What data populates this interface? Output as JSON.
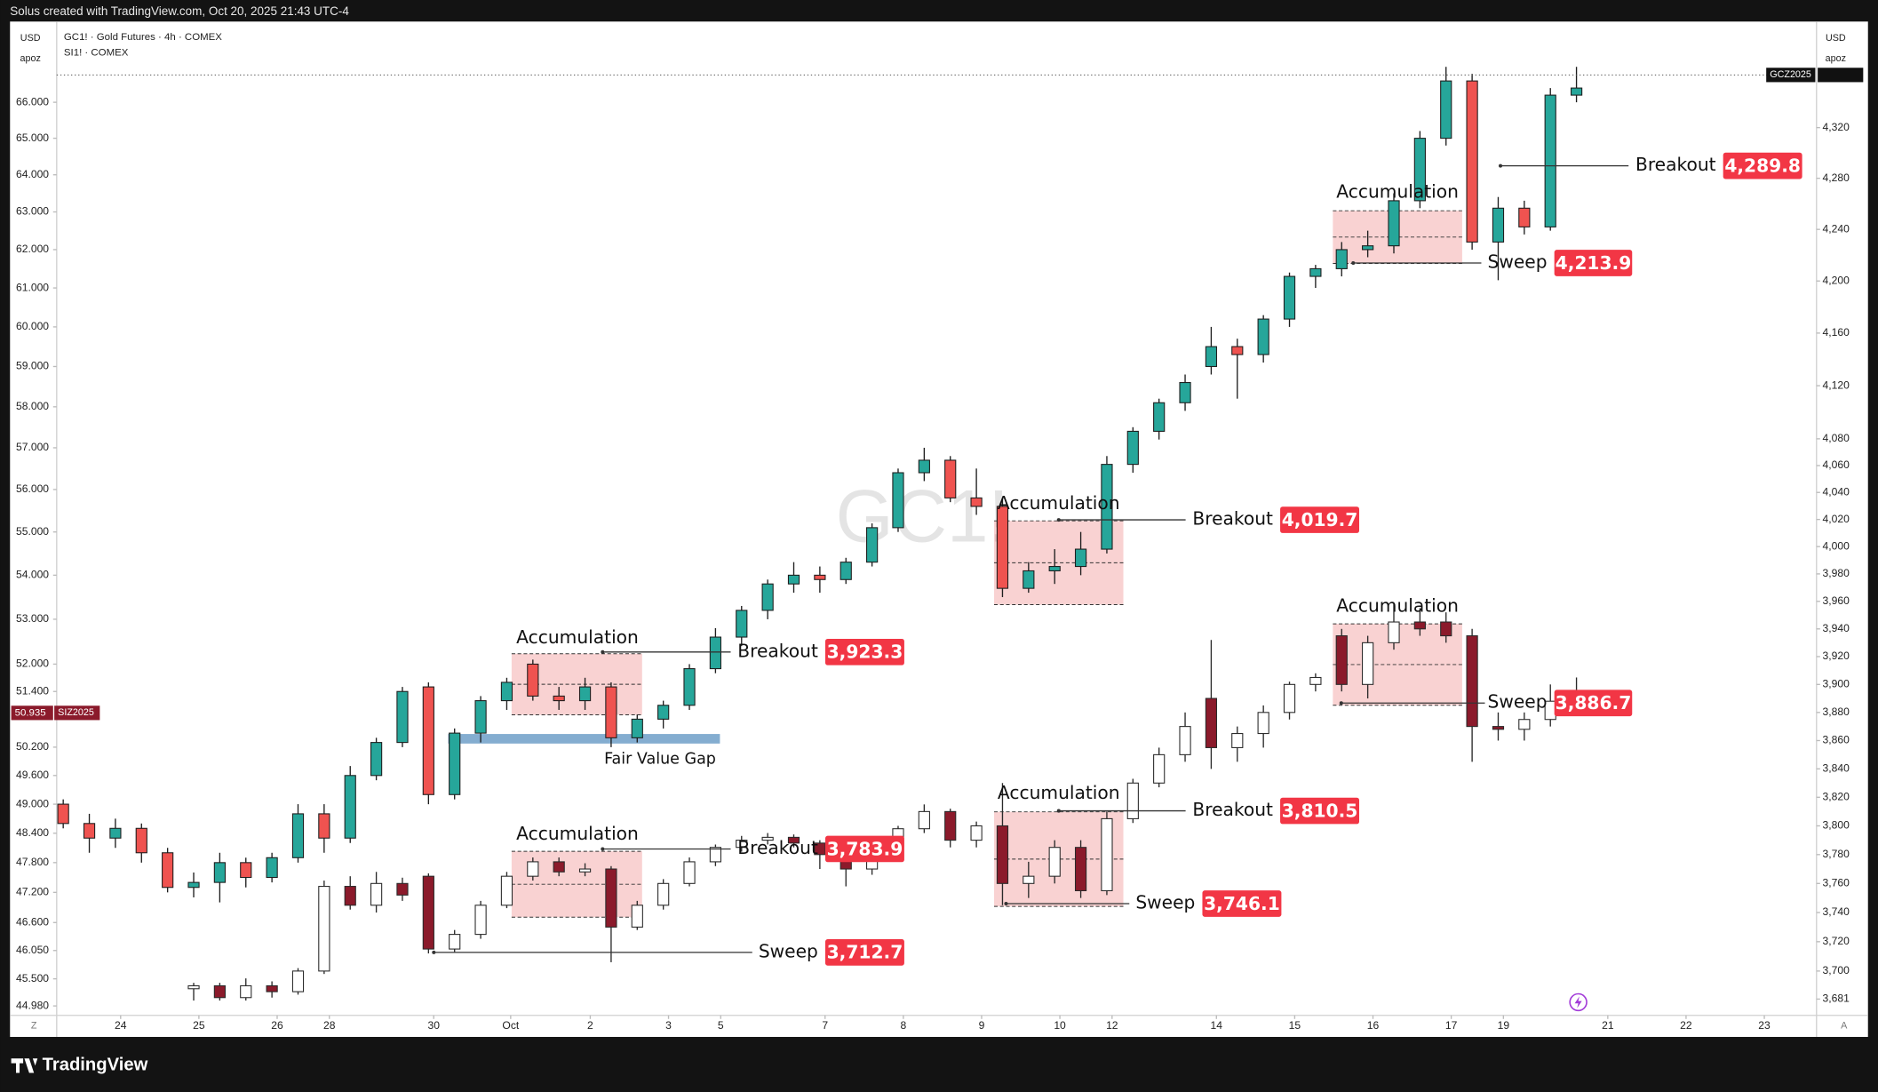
{
  "chart_data": {
    "type": "candlestick",
    "title": "Solus created with TradingView.com, Oct 20, 2025 21:43 UTC-4",
    "watermark": "GC1!",
    "footer": "TradingView",
    "axis_labels": {
      "left": [
        "USD",
        "apoz"
      ],
      "right": [
        "USD",
        "apoz"
      ]
    },
    "corner_labels": [
      "Z",
      "A"
    ],
    "log_scale": true,
    "grid": false,
    "xlim": [
      -0.5,
      134.4
    ],
    "xticks": [
      {
        "value": 4.4,
        "label": "24"
      },
      {
        "value": 10.4,
        "label": "25"
      },
      {
        "value": 16.4,
        "label": "26"
      },
      {
        "value": 20.4,
        "label": "28"
      },
      {
        "value": 28.4,
        "label": "30"
      },
      {
        "value": 34.3,
        "label": "Oct"
      },
      {
        "value": 40.4,
        "label": "2"
      },
      {
        "value": 46.4,
        "label": "3"
      },
      {
        "value": 50.4,
        "label": "5"
      },
      {
        "value": 58.4,
        "label": "7"
      },
      {
        "value": 64.4,
        "label": "8"
      },
      {
        "value": 70.4,
        "label": "9"
      },
      {
        "value": 76.4,
        "label": "10"
      },
      {
        "value": 80.4,
        "label": "12"
      },
      {
        "value": 88.4,
        "label": "14"
      },
      {
        "value": 94.4,
        "label": "15"
      },
      {
        "value": 100.4,
        "label": "16"
      },
      {
        "value": 106.4,
        "label": "17"
      },
      {
        "value": 110.4,
        "label": "19"
      },
      {
        "value": 118.4,
        "label": "21"
      },
      {
        "value": 124.4,
        "label": "22"
      },
      {
        "value": 130.4,
        "label": "23"
      }
    ],
    "ylim": [
      44.8,
      68.3
    ],
    "yticks": [
      {
        "value": 66,
        "label": "66.000"
      },
      {
        "value": 65,
        "label": "65.000"
      },
      {
        "value": 64,
        "label": "64.000"
      },
      {
        "value": 63,
        "label": "63.000"
      },
      {
        "value": 62,
        "label": "62.000"
      },
      {
        "value": 61,
        "label": "61.000"
      },
      {
        "value": 60,
        "label": "60.000"
      },
      {
        "value": 59,
        "label": "59.000"
      },
      {
        "value": 58,
        "label": "58.000"
      },
      {
        "value": 57,
        "label": "57.000"
      },
      {
        "value": 56,
        "label": "56.000"
      },
      {
        "value": 55,
        "label": "55.000"
      },
      {
        "value": 54,
        "label": "54.000"
      },
      {
        "value": 53,
        "label": "53.000"
      },
      {
        "value": 52,
        "label": "52.000"
      },
      {
        "value": 51.4,
        "label": "51.400"
      },
      {
        "value": 50.2,
        "label": "50.200"
      },
      {
        "value": 49.6,
        "label": "49.600"
      },
      {
        "value": 49,
        "label": "49.000"
      },
      {
        "value": 48.4,
        "label": "48.400"
      },
      {
        "value": 47.8,
        "label": "47.800"
      },
      {
        "value": 47.2,
        "label": "47.200"
      },
      {
        "value": 46.6,
        "label": "46.600"
      },
      {
        "value": 46.05,
        "label": "46.050"
      },
      {
        "value": 45.5,
        "label": "45.500"
      },
      {
        "value": 44.98,
        "label": "44.980"
      }
    ],
    "y2lim": [
      3670,
      4405
    ],
    "y2ticks": [
      {
        "value": 4320,
        "label": "4,320"
      },
      {
        "value": 4280,
        "label": "4,280"
      },
      {
        "value": 4240,
        "label": "4,240"
      },
      {
        "value": 4200,
        "label": "4,200"
      },
      {
        "value": 4160,
        "label": "4,160"
      },
      {
        "value": 4120,
        "label": "4,120"
      },
      {
        "value": 4080,
        "label": "4,080"
      },
      {
        "value": 4060,
        "label": "4,060"
      },
      {
        "value": 4040,
        "label": "4,040"
      },
      {
        "value": 4020,
        "label": "4,020"
      },
      {
        "value": 4000,
        "label": "4,000"
      },
      {
        "value": 3980,
        "label": "3,980"
      },
      {
        "value": 3960,
        "label": "3,960"
      },
      {
        "value": 3940,
        "label": "3,940"
      },
      {
        "value": 3920,
        "label": "3,920"
      },
      {
        "value": 3900,
        "label": "3,900"
      },
      {
        "value": 3880,
        "label": "3,880"
      },
      {
        "value": 3860,
        "label": "3,860"
      },
      {
        "value": 3840,
        "label": "3,840"
      },
      {
        "value": 3820,
        "label": "3,820"
      },
      {
        "value": 3800,
        "label": "3,800"
      },
      {
        "value": 3780,
        "label": "3,780"
      },
      {
        "value": 3760,
        "label": "3,760"
      },
      {
        "value": 3740,
        "label": "3,740"
      },
      {
        "value": 3720,
        "label": "3,720"
      },
      {
        "value": 3700,
        "label": "3,700"
      },
      {
        "value": 3681,
        "label": "3,681"
      }
    ],
    "series": [
      {
        "name": "SI1! · COMEX",
        "axis": "y",
        "up_color": "#26a69a",
        "down_color": "#ef5350",
        "border_color": "#1e1e1e",
        "x": [
          0,
          2,
          4,
          6,
          8,
          10,
          12,
          14,
          16,
          18,
          20,
          22,
          24,
          26,
          28,
          30,
          32,
          34,
          36,
          38,
          40,
          42,
          44,
          46,
          48,
          50,
          52,
          54,
          56,
          58,
          60,
          62,
          64,
          66,
          68,
          70,
          72,
          74,
          76,
          78,
          80,
          82,
          84,
          86,
          88,
          90,
          92,
          94,
          96,
          98,
          100,
          102,
          104,
          106,
          108,
          110,
          112,
          114,
          116
        ],
        "ohlc": [
          [
            49.0,
            49.1,
            48.5,
            48.6
          ],
          [
            48.6,
            48.8,
            48.0,
            48.3
          ],
          [
            48.3,
            48.7,
            48.1,
            48.5
          ],
          [
            48.5,
            48.6,
            47.8,
            48.0
          ],
          [
            48.0,
            48.1,
            47.2,
            47.3
          ],
          [
            47.3,
            47.6,
            47.1,
            47.4
          ],
          [
            47.4,
            48.0,
            47.0,
            47.8
          ],
          [
            47.8,
            47.9,
            47.3,
            47.5
          ],
          [
            47.5,
            48.0,
            47.4,
            47.9
          ],
          [
            47.9,
            49.0,
            47.8,
            48.8
          ],
          [
            48.8,
            49.0,
            48.0,
            48.3
          ],
          [
            48.3,
            49.8,
            48.2,
            49.6
          ],
          [
            49.6,
            50.4,
            49.5,
            50.3
          ],
          [
            50.3,
            51.5,
            50.2,
            51.4
          ],
          [
            51.5,
            51.6,
            49.0,
            49.2
          ],
          [
            49.2,
            50.6,
            49.1,
            50.5
          ],
          [
            50.5,
            51.3,
            50.3,
            51.2
          ],
          [
            51.2,
            51.7,
            51.0,
            51.6
          ],
          [
            52.0,
            52.1,
            51.2,
            51.3
          ],
          [
            51.3,
            51.5,
            51.0,
            51.2
          ],
          [
            51.2,
            51.7,
            51.0,
            51.5
          ],
          [
            51.5,
            51.6,
            50.2,
            50.4
          ],
          [
            50.4,
            50.9,
            50.3,
            50.8
          ],
          [
            50.8,
            51.2,
            50.6,
            51.1
          ],
          [
            51.1,
            52.0,
            51.0,
            51.9
          ],
          [
            51.9,
            52.8,
            51.8,
            52.6
          ],
          [
            52.6,
            53.3,
            52.4,
            53.2
          ],
          [
            53.2,
            53.9,
            53.0,
            53.8
          ],
          [
            53.8,
            54.3,
            53.6,
            54.0
          ],
          [
            54.0,
            54.2,
            53.6,
            53.9
          ],
          [
            53.9,
            54.4,
            53.8,
            54.3
          ],
          [
            54.3,
            55.2,
            54.2,
            55.1
          ],
          [
            55.1,
            56.5,
            55.0,
            56.4
          ],
          [
            56.4,
            57.0,
            56.2,
            56.7
          ],
          [
            56.7,
            56.8,
            55.7,
            55.8
          ],
          [
            55.8,
            56.5,
            55.4,
            55.6
          ],
          [
            55.6,
            55.8,
            53.5,
            53.7
          ],
          [
            53.7,
            54.3,
            53.6,
            54.1
          ],
          [
            54.1,
            54.6,
            53.8,
            54.2
          ],
          [
            54.2,
            55.0,
            54.0,
            54.6
          ],
          [
            54.6,
            56.8,
            54.5,
            56.6
          ],
          [
            56.6,
            57.5,
            56.4,
            57.4
          ],
          [
            57.4,
            58.2,
            57.2,
            58.1
          ],
          [
            58.1,
            58.8,
            57.9,
            58.6
          ],
          [
            59.0,
            60.0,
            58.8,
            59.5
          ],
          [
            59.5,
            59.7,
            58.2,
            59.3
          ],
          [
            59.3,
            60.3,
            59.1,
            60.2
          ],
          [
            60.2,
            61.4,
            60.0,
            61.3
          ],
          [
            61.3,
            61.6,
            61.0,
            61.5
          ],
          [
            61.5,
            62.2,
            61.3,
            62.0
          ],
          [
            62.0,
            62.5,
            61.8,
            62.1
          ],
          [
            62.1,
            63.5,
            61.9,
            63.3
          ],
          [
            63.3,
            65.2,
            63.1,
            65.0
          ],
          [
            65.0,
            67.0,
            64.8,
            66.6
          ],
          [
            66.6,
            66.8,
            62.0,
            62.2
          ],
          [
            62.2,
            63.4,
            61.2,
            63.1
          ],
          [
            63.1,
            63.3,
            62.4,
            62.6
          ],
          [
            62.6,
            66.4,
            62.5,
            66.2
          ],
          [
            66.2,
            67.0,
            66.0,
            66.4
          ]
        ]
      },
      {
        "name": "GC1! · Gold Futures · 4h · COMEX",
        "axis": "y2",
        "up_color": "#ffffff",
        "down_color": "#8b1a2b",
        "border_color": "#2a2a2a",
        "x": [
          10,
          12,
          14,
          16,
          18,
          20,
          22,
          24,
          26,
          28,
          30,
          32,
          34,
          36,
          38,
          40,
          42,
          44,
          46,
          48,
          50,
          52,
          54,
          56,
          58,
          60,
          62,
          64,
          66,
          68,
          70,
          72,
          74,
          76,
          78,
          80,
          82,
          84,
          86,
          88,
          90,
          92,
          94,
          96,
          98,
          100,
          102,
          104,
          106,
          108,
          110,
          112,
          114,
          116
        ],
        "ohlc": [
          [
            3688,
            3692,
            3680,
            3690
          ],
          [
            3690,
            3692,
            3680,
            3682
          ],
          [
            3682,
            3695,
            3680,
            3690
          ],
          [
            3690,
            3693,
            3682,
            3686
          ],
          [
            3686,
            3702,
            3684,
            3700
          ],
          [
            3700,
            3762,
            3698,
            3758
          ],
          [
            3758,
            3765,
            3742,
            3745
          ],
          [
            3745,
            3768,
            3740,
            3760
          ],
          [
            3760,
            3764,
            3748,
            3752
          ],
          [
            3765,
            3767,
            3712,
            3715
          ],
          [
            3715,
            3728,
            3713,
            3725
          ],
          [
            3725,
            3748,
            3722,
            3745
          ],
          [
            3745,
            3768,
            3743,
            3765
          ],
          [
            3765,
            3778,
            3762,
            3775
          ],
          [
            3775,
            3778,
            3765,
            3768
          ],
          [
            3768,
            3774,
            3765,
            3770
          ],
          [
            3770,
            3772,
            3706,
            3730
          ],
          [
            3730,
            3748,
            3728,
            3745
          ],
          [
            3745,
            3763,
            3742,
            3760
          ],
          [
            3760,
            3778,
            3758,
            3775
          ],
          [
            3775,
            3787,
            3772,
            3785
          ],
          [
            3785,
            3793,
            3782,
            3790
          ],
          [
            3790,
            3795,
            3787,
            3792
          ],
          [
            3792,
            3794,
            3785,
            3788
          ],
          [
            3788,
            3790,
            3770,
            3780
          ],
          [
            3780,
            3782,
            3758,
            3770
          ],
          [
            3770,
            3788,
            3766,
            3785
          ],
          [
            3785,
            3800,
            3782,
            3798
          ],
          [
            3798,
            3815,
            3795,
            3810
          ],
          [
            3810,
            3812,
            3785,
            3790
          ],
          [
            3790,
            3803,
            3785,
            3800
          ],
          [
            3800,
            3830,
            3745,
            3760
          ],
          [
            3760,
            3775,
            3750,
            3765
          ],
          [
            3765,
            3790,
            3760,
            3785
          ],
          [
            3785,
            3790,
            3750,
            3755
          ],
          [
            3755,
            3810,
            3752,
            3805
          ],
          [
            3805,
            3833,
            3802,
            3830
          ],
          [
            3830,
            3855,
            3827,
            3850
          ],
          [
            3850,
            3880,
            3845,
            3870
          ],
          [
            3890,
            3932,
            3840,
            3855
          ],
          [
            3855,
            3870,
            3845,
            3865
          ],
          [
            3865,
            3885,
            3855,
            3880
          ],
          [
            3880,
            3902,
            3875,
            3900
          ],
          [
            3900,
            3908,
            3895,
            3905
          ],
          [
            3935,
            3940,
            3895,
            3900
          ],
          [
            3900,
            3935,
            3890,
            3930
          ],
          [
            3930,
            3958,
            3925,
            3945
          ],
          [
            3945,
            3955,
            3935,
            3940
          ],
          [
            3945,
            3952,
            3930,
            3935
          ],
          [
            3935,
            3940,
            3845,
            3870
          ],
          [
            3870,
            3880,
            3860,
            3868
          ],
          [
            3868,
            3880,
            3860,
            3875
          ],
          [
            3875,
            3900,
            3870,
            3888
          ],
          [
            3888,
            3905,
            3882,
            3893
          ]
        ]
      }
    ],
    "price_labels": [
      {
        "ticker": "SIZ2025",
        "axis": "y",
        "value": 50.935,
        "label": "50.935"
      },
      {
        "ticker": "GCZ2025",
        "axis": "y2",
        "value": 4362
      }
    ],
    "annotations": [
      {
        "text": "Breakout",
        "value": 4289.8,
        "label": "4,289.8"
      },
      {
        "text": "Sweep",
        "value": 4213.9,
        "label": "4,213.9"
      },
      {
        "text": "Breakout",
        "value": 4019.7,
        "label": "4,019.7"
      },
      {
        "text": "Breakout",
        "value": 3923.3,
        "label": "3,923.3"
      },
      {
        "text": "Sweep",
        "value": 3886.7,
        "label": "3,886.7"
      },
      {
        "text": "Breakout",
        "value": 3810.5,
        "label": "3,810.5"
      },
      {
        "text": "Breakout",
        "value": 3783.9,
        "label": "3,783.9"
      },
      {
        "text": "Sweep",
        "value": 3746.1,
        "label": "3,746.1"
      },
      {
        "text": "Sweep",
        "value": 3712.7,
        "label": "3,712.7"
      }
    ],
    "zones": [
      "Accumulation",
      "Accumulation",
      "Accumulation",
      "Accumulation",
      "Accumulation",
      "Accumulation"
    ],
    "gap_label": "Fair Value Gap"
  }
}
